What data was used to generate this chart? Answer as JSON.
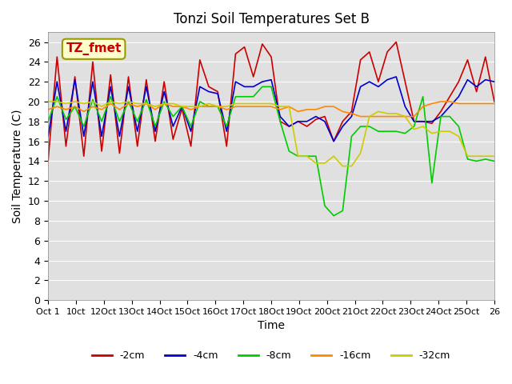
{
  "title": "Tonzi Soil Temperatures Set B",
  "xlabel": "Time",
  "ylabel": "Soil Temperature (C)",
  "annotation_text": "TZ_fmet",
  "annotation_color": "#cc0000",
  "annotation_bg": "#ffffcc",
  "annotation_border": "#999900",
  "ylim": [
    0,
    27
  ],
  "yticks": [
    0,
    2,
    4,
    6,
    8,
    10,
    12,
    14,
    16,
    18,
    20,
    22,
    24,
    26
  ],
  "bg_color": "#e0e0e0",
  "series_colors": {
    "-2cm": "#cc0000",
    "-4cm": "#0000cc",
    "-8cm": "#00cc00",
    "-16cm": "#ff8800",
    "-32cm": "#cccc00"
  },
  "x_tick_labels": [
    "Oct 1",
    "10ct",
    "12Oct",
    "13Oct",
    "14Oct",
    "15Oct",
    "16Oct",
    "17Oct",
    "18Oct",
    "19Oct",
    "20Oct",
    "21Oct",
    "22Oct",
    "23Oct",
    "24Oct",
    "25Oct",
    "26"
  ],
  "num_points": 51,
  "xlim": [
    0,
    50
  ],
  "red": [
    14.1,
    24.5,
    15.5,
    22.5,
    14.5,
    24.0,
    15.0,
    22.7,
    14.8,
    22.5,
    15.5,
    22.2,
    16.0,
    22.0,
    16.2,
    19.3,
    15.5,
    24.2,
    21.5,
    21.0,
    15.5,
    24.8,
    25.5,
    22.5,
    25.8,
    24.5,
    18.0,
    17.5,
    18.0,
    17.5,
    18.2,
    18.5,
    16.0,
    18.0,
    19.0,
    24.2,
    25.0,
    22.0,
    25.0,
    26.0,
    22.0,
    18.0,
    18.0,
    17.8,
    19.0,
    20.5,
    22.0,
    24.2,
    21.0,
    24.5,
    20.0
  ],
  "blue": [
    16.5,
    22.0,
    17.0,
    22.2,
    16.5,
    22.0,
    16.5,
    21.5,
    16.5,
    21.5,
    17.0,
    21.5,
    17.0,
    21.0,
    17.5,
    19.5,
    17.0,
    21.5,
    21.0,
    20.8,
    17.0,
    22.0,
    21.5,
    21.5,
    22.0,
    22.2,
    18.5,
    17.5,
    18.0,
    18.0,
    18.5,
    18.0,
    16.0,
    17.5,
    18.5,
    21.5,
    22.0,
    21.5,
    22.2,
    22.5,
    19.5,
    18.0,
    18.0,
    18.0,
    18.5,
    19.5,
    20.5,
    22.2,
    21.5,
    22.2,
    22.0
  ],
  "green": [
    18.0,
    20.5,
    18.2,
    19.5,
    17.5,
    20.2,
    18.0,
    20.5,
    18.0,
    20.0,
    18.0,
    20.2,
    17.5,
    20.0,
    18.5,
    19.5,
    17.5,
    20.0,
    19.5,
    19.5,
    17.5,
    20.5,
    20.5,
    20.5,
    21.5,
    21.5,
    18.0,
    15.0,
    14.5,
    14.5,
    14.5,
    9.5,
    8.5,
    9.0,
    16.5,
    17.5,
    17.5,
    17.0,
    17.0,
    17.0,
    16.8,
    17.5,
    20.5,
    11.8,
    18.5,
    18.5,
    17.5,
    14.2,
    14.0,
    14.2,
    14.0
  ],
  "orange": [
    19.2,
    19.5,
    19.2,
    19.5,
    19.0,
    19.5,
    19.2,
    19.8,
    19.2,
    19.8,
    19.5,
    19.8,
    19.2,
    19.8,
    19.5,
    19.5,
    19.2,
    19.5,
    19.5,
    19.5,
    19.2,
    19.5,
    19.5,
    19.5,
    19.5,
    19.5,
    19.2,
    19.5,
    19.0,
    19.2,
    19.2,
    19.5,
    19.5,
    19.0,
    18.8,
    18.5,
    18.5,
    18.5,
    18.5,
    18.5,
    18.5,
    18.5,
    19.5,
    19.8,
    20.0,
    20.0,
    19.8,
    19.8,
    19.8,
    19.8,
    19.8
  ],
  "yellow": [
    20.0,
    20.0,
    19.8,
    20.0,
    19.8,
    20.0,
    19.5,
    20.0,
    19.8,
    20.0,
    19.8,
    19.8,
    19.5,
    19.8,
    19.8,
    19.5,
    19.5,
    19.5,
    19.8,
    19.5,
    19.5,
    19.8,
    19.8,
    19.8,
    19.8,
    19.8,
    19.5,
    19.5,
    14.5,
    14.5,
    13.8,
    13.8,
    14.5,
    13.5,
    13.5,
    14.8,
    18.5,
    19.0,
    18.8,
    18.8,
    18.5,
    17.2,
    17.5,
    16.8,
    17.0,
    17.0,
    16.5,
    14.5,
    14.5,
    14.5,
    14.5
  ]
}
